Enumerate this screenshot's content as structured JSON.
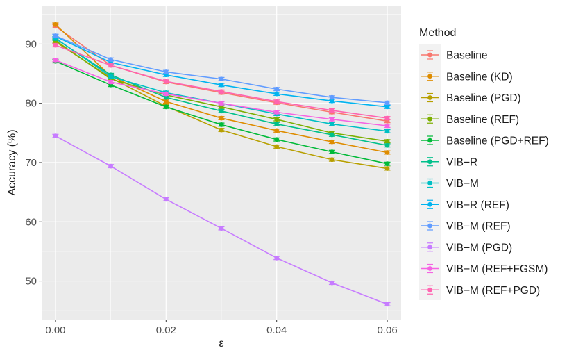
{
  "chart_data": {
    "type": "line",
    "xlabel": "ε",
    "ylabel": "Accuracy (%)",
    "xlim": [
      -0.0025,
      0.0625
    ],
    "ylim": [
      43.5,
      96.5
    ],
    "x_ticks": [
      0.0,
      0.02,
      0.04,
      0.06
    ],
    "x_tick_labels": [
      "0.00",
      "0.02",
      "0.04",
      "0.06"
    ],
    "y_ticks": [
      50,
      60,
      70,
      80,
      90
    ],
    "y_tick_labels": [
      "50",
      "60",
      "70",
      "80",
      "90"
    ],
    "grid": true,
    "legend_title": "Method",
    "legend_position": "right",
    "x": [
      0.0,
      0.01,
      0.02,
      0.03,
      0.04,
      0.05,
      0.06
    ],
    "series": [
      {
        "name": "Baseline",
        "color": "#F8766D",
        "values": [
          93.0,
          86.4,
          83.6,
          81.8,
          80.1,
          78.5,
          77.0
        ]
      },
      {
        "name": "Baseline (KD)",
        "color": "#DE8C00",
        "values": [
          93.3,
          84.6,
          80.3,
          77.5,
          75.4,
          73.5,
          71.7
        ]
      },
      {
        "name": "Baseline (PGD)",
        "color": "#B79F00",
        "values": [
          90.4,
          84.3,
          79.5,
          75.5,
          72.7,
          70.5,
          69.0
        ]
      },
      {
        "name": "Baseline (REF)",
        "color": "#7CAE00",
        "values": [
          90.6,
          84.1,
          81.4,
          79.4,
          77.3,
          75.0,
          73.6
        ]
      },
      {
        "name": "Baseline (PGD+REF)",
        "color": "#00BA38",
        "values": [
          87.1,
          83.1,
          79.4,
          76.4,
          73.9,
          71.8,
          69.8
        ]
      },
      {
        "name": "VIB−R",
        "color": "#00C08B",
        "values": [
          90.9,
          84.8,
          81.0,
          78.7,
          76.5,
          74.7,
          72.9
        ]
      },
      {
        "name": "VIB−M",
        "color": "#00BFC4",
        "values": [
          91.0,
          84.5,
          81.8,
          80.0,
          78.2,
          76.5,
          75.3
        ]
      },
      {
        "name": "VIB−R (REF)",
        "color": "#00B4F0",
        "values": [
          91.3,
          86.9,
          84.8,
          83.1,
          81.6,
          80.4,
          79.4
        ]
      },
      {
        "name": "VIB−M (REF)",
        "color": "#619CFF",
        "values": [
          91.4,
          87.4,
          85.3,
          84.1,
          82.4,
          81.0,
          80.1
        ]
      },
      {
        "name": "VIB−M (PGD)",
        "color": "#C77CFF",
        "values": [
          74.5,
          69.4,
          63.8,
          58.9,
          53.9,
          49.7,
          46.1
        ]
      },
      {
        "name": "VIB−M (REF+FGSM)",
        "color": "#F564E3",
        "values": [
          87.3,
          83.6,
          81.6,
          80.0,
          78.5,
          77.3,
          76.2
        ]
      },
      {
        "name": "VIB−M (REF+PGD)",
        "color": "#FF64B0",
        "values": [
          89.8,
          86.4,
          83.7,
          82.0,
          80.3,
          78.8,
          77.5
        ]
      }
    ]
  }
}
